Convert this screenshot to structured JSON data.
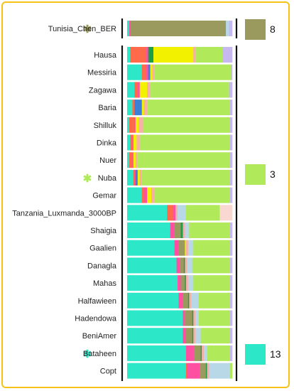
{
  "chart_data": {
    "type": "bar",
    "orientation": "horizontal",
    "stacked": true,
    "normalized": true,
    "xlim": [
      0,
      1
    ],
    "highlight_color": "#f5c318",
    "components": [
      {
        "color": "#2ce8c8"
      },
      {
        "color": "#ff6b4a"
      },
      {
        "color": "#ff4fa3"
      },
      {
        "color": "#3b7fd6"
      },
      {
        "color": "#9a9a5e"
      },
      {
        "color": "#1f9e4a"
      },
      {
        "color": "#f2f200"
      },
      {
        "color": "#f5b0a8"
      },
      {
        "color": "#b8d8e8"
      },
      {
        "color": "#b0ea5a"
      },
      {
        "color": "#c8b8f0"
      },
      {
        "color": "#f8d8d0"
      }
    ],
    "group_top": {
      "categories": [
        "Tunisia_Chen_BER"
      ],
      "marker_colors": [
        "#9a9a5e"
      ],
      "series_values": [
        [
          0.02,
          0,
          0.01,
          0,
          0.91,
          0,
          0,
          0,
          0.03,
          0,
          0.03,
          0
        ]
      ]
    },
    "group_main": {
      "categories": [
        "Hausa",
        "Messiria",
        "Zagawa",
        "Baria",
        "Shilluk",
        "Dinka",
        "Nuer",
        "Nuba",
        "Gemar",
        "Tanzania_Luxmanda_3000BP",
        "Shaigia",
        "Gaalien",
        "Danagla",
        "Mahas",
        "Halfawieen",
        "Hadendowa",
        "BeniAmer",
        "Bataheen",
        "Copt"
      ],
      "marker_colors": [
        "",
        "",
        "",
        "",
        "",
        "",
        "",
        "#b0ea5a",
        "",
        "",
        "",
        "",
        "",
        "",
        "",
        "",
        "",
        "#2ce8c8",
        ""
      ],
      "series_values": [
        [
          0.03,
          0.15,
          0.02,
          0,
          0,
          0.05,
          0.38,
          0.02,
          0,
          0.26,
          0.09,
          0
        ],
        [
          0.14,
          0.04,
          0.02,
          0.02,
          0,
          0,
          0.02,
          0.02,
          0,
          0.73,
          0.01,
          0
        ],
        [
          0.07,
          0.03,
          0.02,
          0,
          0,
          0,
          0.07,
          0.03,
          0,
          0.75,
          0.03,
          0
        ],
        [
          0.05,
          0.02,
          0,
          0.07,
          0,
          0,
          0.02,
          0.03,
          0,
          0.79,
          0.02,
          0
        ],
        [
          0.02,
          0.05,
          0.01,
          0,
          0,
          0,
          0.03,
          0.04,
          0,
          0.83,
          0.02,
          0
        ],
        [
          0.03,
          0.02,
          0.01,
          0,
          0,
          0,
          0.03,
          0.03,
          0,
          0.86,
          0.02,
          0
        ],
        [
          0.02,
          0.03,
          0.01,
          0,
          0,
          0,
          0.02,
          0.02,
          0,
          0.88,
          0.02,
          0
        ],
        [
          0.06,
          0.01,
          0.01,
          0.02,
          0,
          0,
          0.02,
          0.02,
          0,
          0.84,
          0.02,
          0
        ],
        [
          0.14,
          0.02,
          0.03,
          0,
          0,
          0,
          0.04,
          0.03,
          0,
          0.72,
          0.02,
          0
        ],
        [
          0.38,
          0.06,
          0.02,
          0,
          0,
          0,
          0,
          0.02,
          0.08,
          0.32,
          0,
          0.12
        ],
        [
          0.41,
          0,
          0.04,
          0,
          0.06,
          0.02,
          0,
          0.02,
          0.04,
          0.39,
          0.02,
          0
        ],
        [
          0.45,
          0,
          0.04,
          0,
          0.06,
          0,
          0.01,
          0.02,
          0.05,
          0.35,
          0.02,
          0
        ],
        [
          0.47,
          0,
          0.03,
          0,
          0.04,
          0.01,
          0,
          0.02,
          0.05,
          0.36,
          0.02,
          0
        ],
        [
          0.48,
          0,
          0.03,
          0,
          0.04,
          0.01,
          0,
          0.02,
          0.05,
          0.35,
          0.02,
          0
        ],
        [
          0.49,
          0,
          0.04,
          0,
          0.05,
          0.01,
          0,
          0.02,
          0.07,
          0.3,
          0.02,
          0
        ],
        [
          0.53,
          0,
          0.02,
          0,
          0.07,
          0.01,
          0,
          0.02,
          0.03,
          0.3,
          0.02,
          0
        ],
        [
          0.53,
          0,
          0.03,
          0,
          0.06,
          0.01,
          0,
          0.02,
          0.05,
          0.28,
          0.02,
          0
        ],
        [
          0.56,
          0,
          0.08,
          0,
          0.06,
          0.01,
          0,
          0.02,
          0.03,
          0.22,
          0.02,
          0
        ],
        [
          0.56,
          0.01,
          0.12,
          0,
          0.06,
          0.01,
          0,
          0.02,
          0.2,
          0.02,
          0,
          0
        ]
      ]
    },
    "legend_boxes": [
      {
        "color": "#9a9a5e",
        "label": "8"
      },
      {
        "color": "#b0ea5a",
        "label": "3"
      },
      {
        "color": "#2ce8c8",
        "label": "13"
      }
    ]
  }
}
